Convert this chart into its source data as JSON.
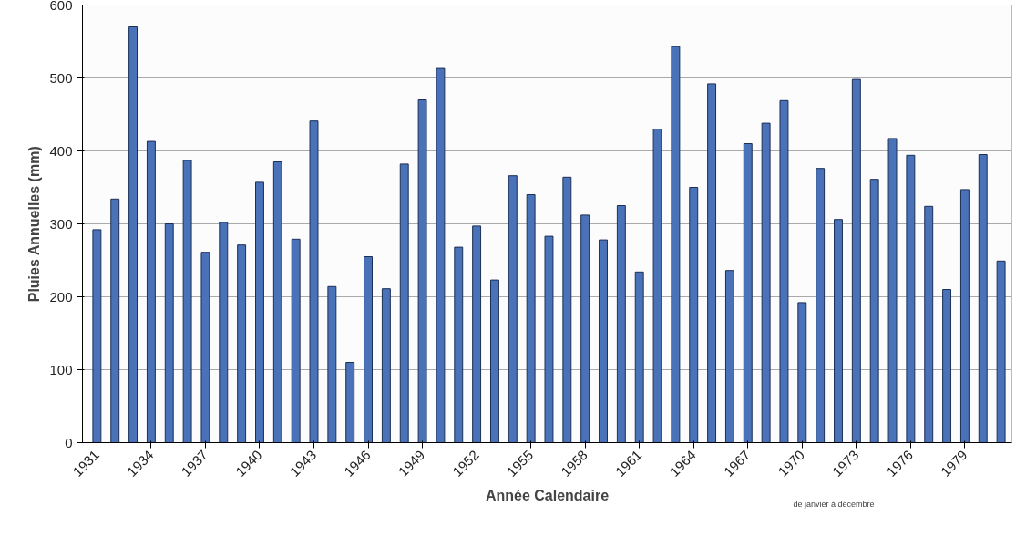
{
  "chart_data": {
    "type": "bar",
    "xlabel": "Année Calendaire",
    "ylabel": "Pluies Annuelles (mm)",
    "annotations": [
      "de janvier à décembre"
    ],
    "categories": [
      "1931",
      null,
      null,
      "1934",
      null,
      null,
      "1937",
      null,
      null,
      "1940",
      null,
      null,
      "1943",
      null,
      null,
      "1946",
      null,
      null,
      "1949",
      null,
      null,
      "1952",
      null,
      null,
      "1955",
      null,
      null,
      "1958",
      null,
      null,
      "1961",
      null,
      null,
      "1964",
      null,
      null,
      "1967",
      null,
      null,
      "1970",
      null,
      null,
      "1973",
      null,
      null,
      "1976",
      null,
      null,
      "1979",
      null,
      null
    ],
    "values": [
      292,
      334,
      570,
      413,
      300,
      387,
      261,
      302,
      271,
      357,
      385,
      279,
      441,
      214,
      110,
      255,
      211,
      382,
      470,
      513,
      268,
      297,
      223,
      366,
      340,
      283,
      364,
      312,
      278,
      325,
      234,
      430,
      543,
      350,
      492,
      236,
      410,
      438,
      469,
      192,
      376,
      306,
      498,
      361,
      417,
      394,
      324,
      210,
      347,
      395,
      249
    ],
    "color": "#4a72b8",
    "ylim": [
      0,
      600
    ],
    "yticks": [
      0,
      100,
      200,
      300,
      400,
      500,
      600
    ],
    "grid": "y"
  }
}
